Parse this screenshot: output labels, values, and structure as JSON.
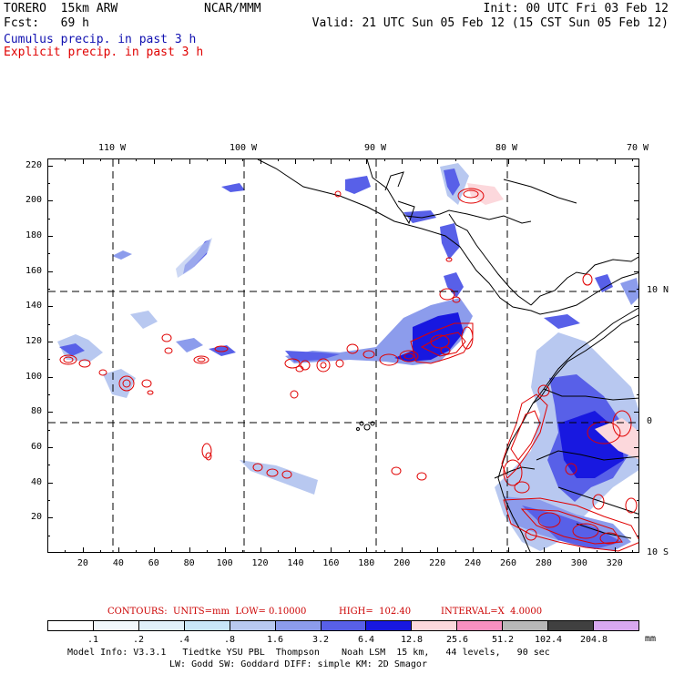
{
  "header": {
    "model": "TORERO  15km ARW",
    "org": "NCAR/MMM",
    "init": "Init: 00 UTC Fri 03 Feb 12",
    "fcst": "Fcst:   69 h",
    "valid": "Valid: 21 UTC Sun 05 Feb 12 (15 CST Sun 05 Feb 12)",
    "field1": "Cumulus precip. in past 3 h",
    "field2": "Explicit precip. in past 3 h",
    "field1_color": "#1010b0",
    "field2_color": "#e00000"
  },
  "map": {
    "top_lon_labels": [
      "110 W",
      "100 W",
      "90 W",
      "80 W",
      "70 W"
    ],
    "right_lat_labels": [
      "10 N",
      "0",
      "10 S"
    ],
    "y_grid_labels": [
      "220",
      "200",
      "180",
      "160",
      "140",
      "120",
      "100",
      "80",
      "60",
      "40",
      "20"
    ],
    "x_grid_labels": [
      "20",
      "40",
      "60",
      "80",
      "100",
      "120",
      "140",
      "160",
      "180",
      "200",
      "220",
      "240",
      "260",
      "280",
      "300",
      "320"
    ],
    "x_range": [
      0,
      334
    ],
    "y_range": [
      0,
      224
    ]
  },
  "contour_info": {
    "contours_label": "CONTOURS:  UNITS=mm  LOW= 0.10000",
    "high_label": "HIGH=  102.40",
    "interval_label": "INTERVAL=X  4.0000",
    "color": "#cc0000"
  },
  "colorbar": {
    "colors": [
      "#ffffff",
      "#f2f8fc",
      "#e0f0fa",
      "#c8e6f8",
      "#b8c8f0",
      "#8c9cec",
      "#5860e8",
      "#1818e0",
      "#fcd8dc",
      "#f890c0",
      "#b8b8b8",
      "#404040",
      "#d8a8f0"
    ],
    "tick_labels": [
      ".1",
      ".2",
      ".4",
      ".8",
      "1.6",
      "3.2",
      "6.4",
      "12.8",
      "25.6",
      "51.2",
      "102.4",
      "204.8"
    ],
    "units": "mm"
  },
  "footer": {
    "line1": "Model Info: V3.3.1   Tiedtke YSU PBL  Thompson    Noah LSM  15 km,   44 levels,   90 sec",
    "line2": "LW: Godd SW: Goddard DIFF: simple KM: 2D Smagor"
  }
}
